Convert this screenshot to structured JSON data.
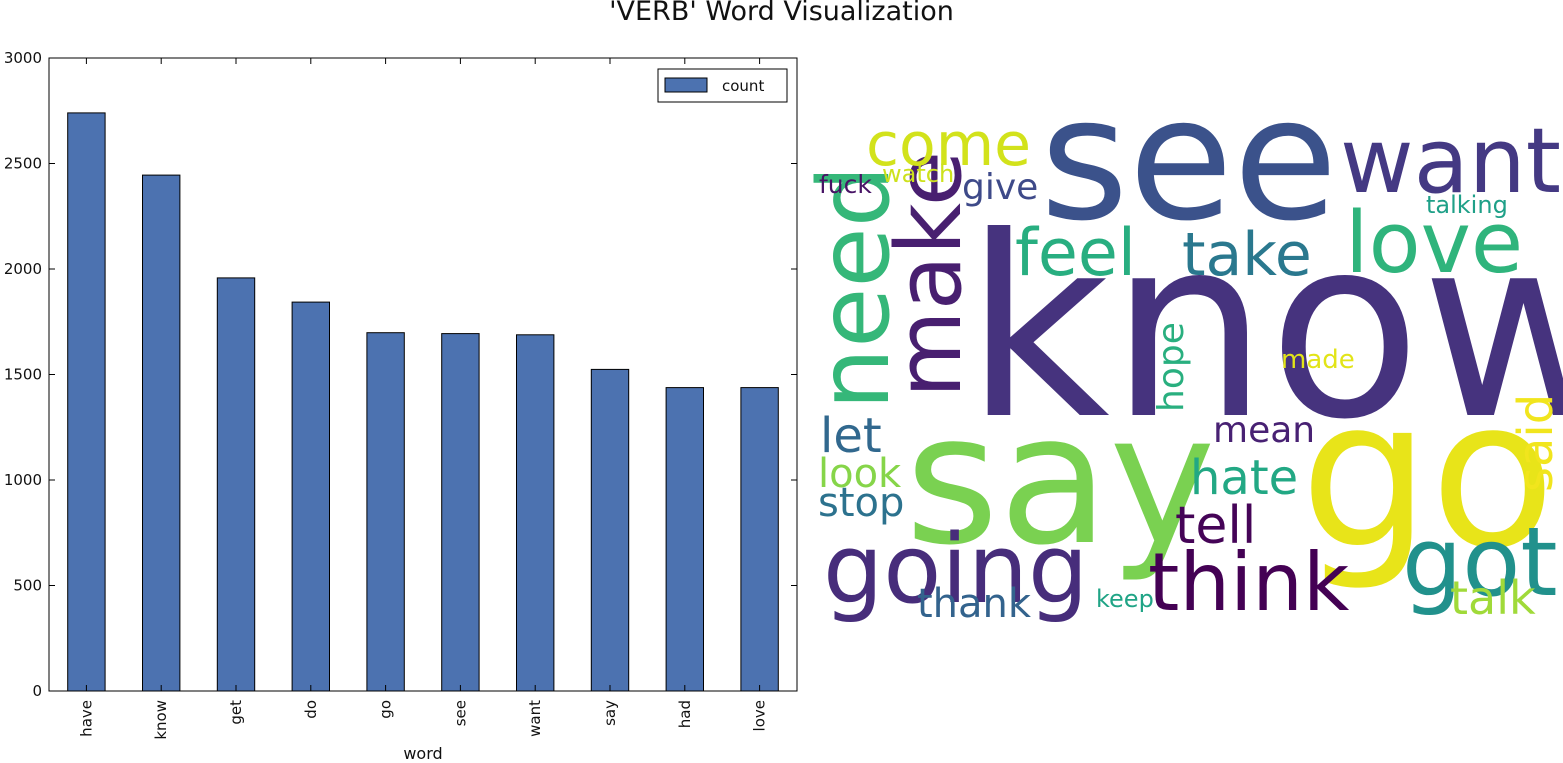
{
  "figure": {
    "title": "'VERB' Word Visualization"
  },
  "chart_data": [
    {
      "type": "bar",
      "title": "",
      "xlabel": "word",
      "ylabel": "",
      "ylim": [
        0,
        3000
      ],
      "yticks": [
        0,
        500,
        1000,
        1500,
        2000,
        2500,
        3000
      ],
      "categories": [
        "have",
        "know",
        "get",
        "do",
        "go",
        "see",
        "want",
        "say",
        "had",
        "love"
      ],
      "series": [
        {
          "name": "count",
          "color": "#4c72b0",
          "values": [
            2740,
            2445,
            1958,
            1843,
            1698,
            1694,
            1688,
            1524,
            1438,
            1438
          ]
        }
      ],
      "legend": {
        "position": "top-right",
        "entries": [
          "count"
        ]
      },
      "grid": false
    },
    {
      "type": "wordcloud",
      "colormap": "viridis",
      "words": [
        {
          "text": "know",
          "color": "#46337e"
        },
        {
          "text": "see",
          "color": "#3b528b"
        },
        {
          "text": "say",
          "color": "#7ad151"
        },
        {
          "text": "go",
          "color": "#e8e419"
        },
        {
          "text": "going",
          "color": "#472d7b"
        },
        {
          "text": "think",
          "color": "#440154"
        },
        {
          "text": "want",
          "color": "#443983"
        },
        {
          "text": "love",
          "color": "#2fb47c"
        },
        {
          "text": "make",
          "color": "#481f70"
        },
        {
          "text": "need",
          "color": "#35b779"
        },
        {
          "text": "got",
          "color": "#21918c"
        },
        {
          "text": "come",
          "color": "#d2e21b"
        },
        {
          "text": "feel",
          "color": "#28ae80"
        },
        {
          "text": "take",
          "color": "#2a788e"
        },
        {
          "text": "tell",
          "color": "#450457"
        },
        {
          "text": "hate",
          "color": "#22a884"
        },
        {
          "text": "said",
          "color": "#f1e51d"
        },
        {
          "text": "talk",
          "color": "#a0da39"
        },
        {
          "text": "let",
          "color": "#31688e"
        },
        {
          "text": "look",
          "color": "#86d549"
        },
        {
          "text": "stop",
          "color": "#2c728e"
        },
        {
          "text": "thank",
          "color": "#33638d"
        },
        {
          "text": "mean",
          "color": "#482173"
        },
        {
          "text": "give",
          "color": "#3e4a89"
        },
        {
          "text": "hope",
          "color": "#29af7f"
        },
        {
          "text": "made",
          "color": "#e2e418"
        },
        {
          "text": "fuck",
          "color": "#471365"
        },
        {
          "text": "watch",
          "color": "#cde11d"
        },
        {
          "text": "talking",
          "color": "#1fa088"
        },
        {
          "text": "keep",
          "color": "#20a486"
        }
      ]
    }
  ]
}
